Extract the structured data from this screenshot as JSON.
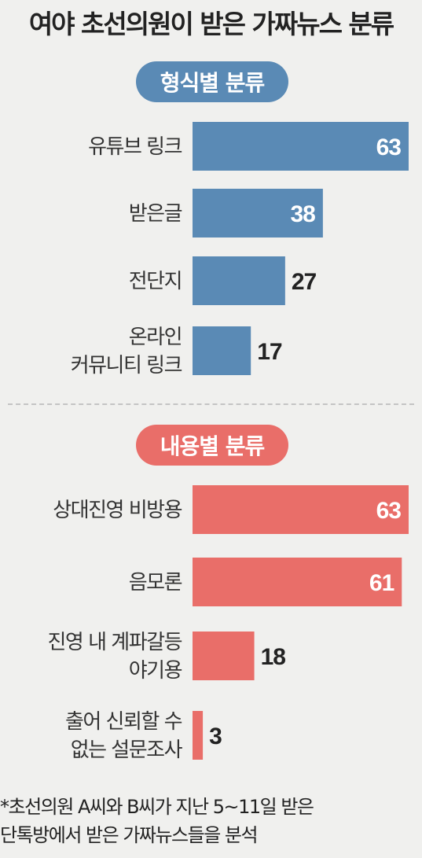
{
  "title": "여야 초선의원이 받은 가짜뉴스 분류",
  "footnote": {
    "line1": "*초선의원 A씨와 B씨가 지난 5~11일 받은",
    "line2": "단톡방에서 받은 가짜뉴스들을 분석"
  },
  "colors": {
    "blue": "#5a8ab5",
    "red": "#e96e69",
    "background": "#f0f0ee"
  },
  "chart_data": [
    {
      "type": "bar",
      "orientation": "horizontal",
      "title": "형식별 분류",
      "color": "#5a8ab5",
      "categories": [
        [
          "유튜브 링크"
        ],
        [
          "받은글"
        ],
        [
          "전단지"
        ],
        [
          "온라인",
          "커뮤니티 링크"
        ]
      ],
      "values": [
        63,
        38,
        27,
        17
      ],
      "xlim": [
        0,
        63
      ]
    },
    {
      "type": "bar",
      "orientation": "horizontal",
      "title": "내용별 분류",
      "color": "#e96e69",
      "categories": [
        [
          "상대진영 비방용"
        ],
        [
          "음모론"
        ],
        [
          "진영 내 계파갈등",
          "야기용"
        ],
        [
          "출어 신뢰할 수",
          "없는 설문조사"
        ]
      ],
      "values": [
        63,
        61,
        18,
        3
      ],
      "xlim": [
        0,
        63
      ]
    }
  ]
}
